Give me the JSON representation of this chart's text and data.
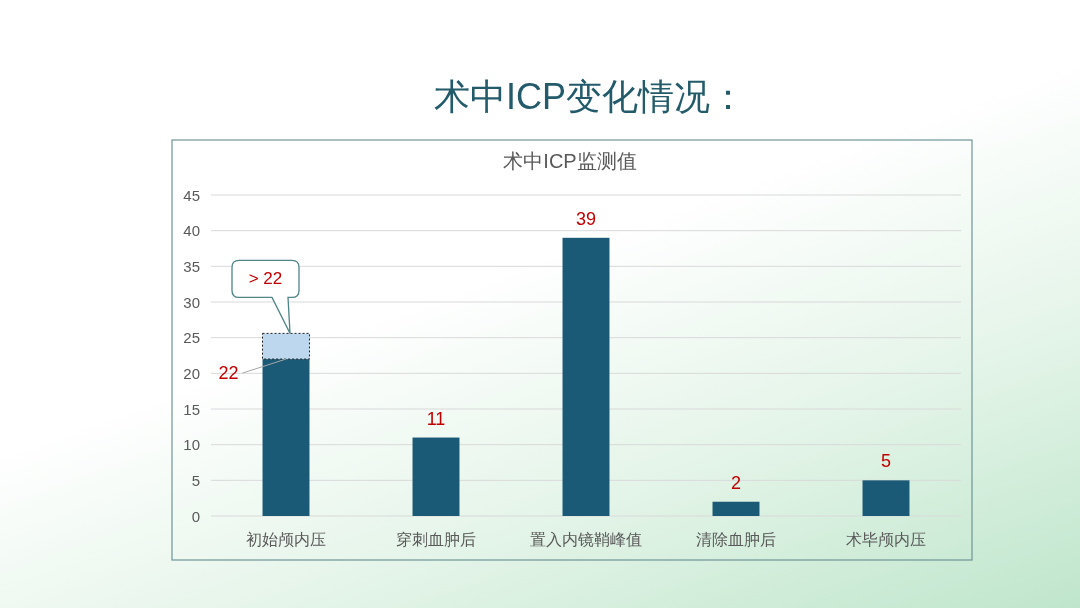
{
  "chart_data": {
    "type": "bar",
    "title": "术中ICP变化情况：",
    "subtitle": "术中ICP监测值",
    "categories": [
      "初始颅内压",
      "穿刺血肿后",
      "置入内镜鞘峰值",
      "清除血肿后",
      "术毕颅内压"
    ],
    "series": [
      {
        "color": "#1a5a77",
        "values": [
          22,
          11,
          39,
          2,
          5
        ],
        "value_labels": [
          "22",
          "11",
          "39",
          "2",
          "5"
        ]
      },
      {
        "color": "#bdd7ee",
        "values": [
          3.6,
          null,
          null,
          null,
          null
        ],
        "line_style": "dotted"
      }
    ],
    "stacked": true,
    "ylim": [
      0,
      45
    ],
    "yticks": [
      0,
      5,
      10,
      15,
      20,
      25,
      30,
      35,
      40,
      45
    ],
    "grid": "y",
    "annotations": [
      {
        "text": "> 22",
        "x": "初始颅内压",
        "y": 25.6
      }
    ]
  }
}
